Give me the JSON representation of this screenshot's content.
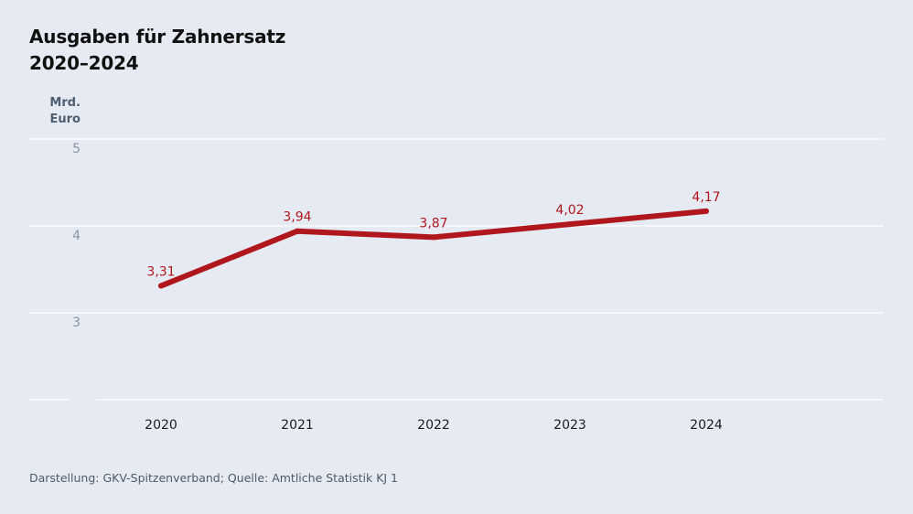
{
  "title_line1": "Ausgaben für Zahnersatz",
  "title_line2": "2020–2024",
  "unit_line1": "Mrd.",
  "unit_line2": "Euro",
  "source": "Darstellung: GKV-Spitzenverband; Quelle: Amtliche Statistik KJ 1",
  "colors": {
    "line": "#b0171d",
    "label": "#b0171d",
    "grid": "#ffffff",
    "background": "#e6eaf3"
  },
  "chart_data": {
    "type": "line",
    "title": "Ausgaben für Zahnersatz 2020–2024",
    "ylabel": "Mrd. Euro",
    "xlabel": "",
    "x": [
      "2020",
      "2021",
      "2022",
      "2023",
      "2024"
    ],
    "series": [
      {
        "values": [
          3.31,
          3.94,
          3.87,
          4.02,
          4.17
        ],
        "labels": [
          "3,31",
          "3,94",
          "3,87",
          "4,02",
          "4,17"
        ]
      }
    ],
    "yticks": [
      {
        "value": 3,
        "label": "3"
      },
      {
        "value": 4,
        "label": "4"
      },
      {
        "value": 5,
        "label": "5"
      }
    ],
    "ylim": [
      2,
      5
    ],
    "grid": true,
    "legend": "none"
  }
}
